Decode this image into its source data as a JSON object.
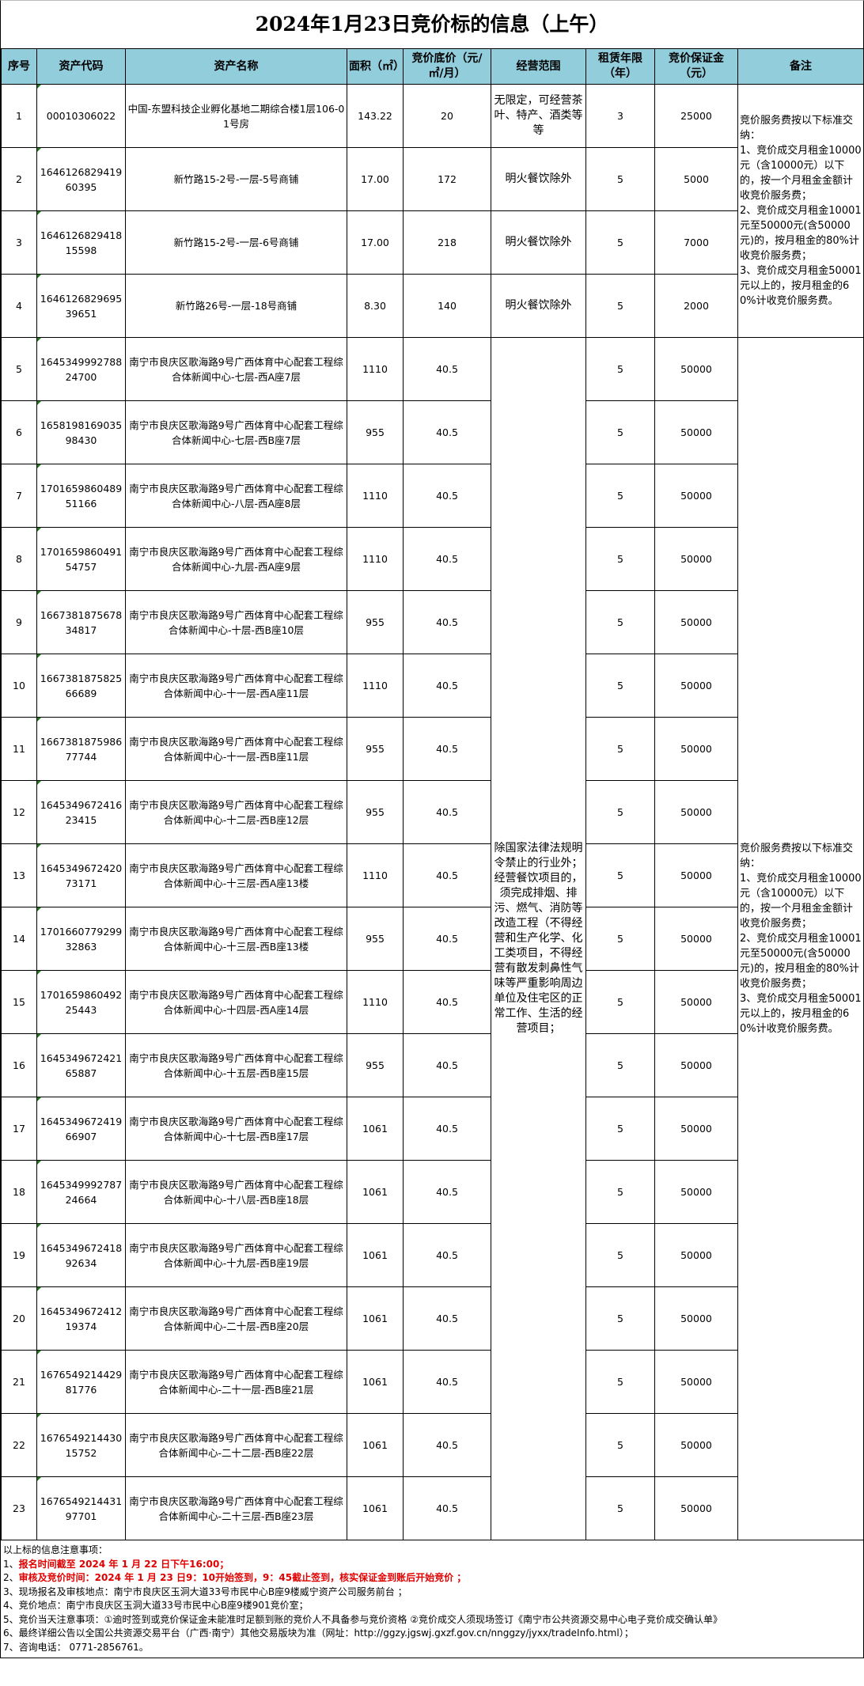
{
  "title": "2024年1月23日竞价标的信息（上午）",
  "header_color": "#92cddc",
  "columns": [
    "序号",
    "资产代码",
    "资产名称",
    "面积（㎡）",
    "竞价底价（元/㎡/月）",
    "经营范围",
    "租赁年限（年）",
    "竞价保证金（元）",
    "备注"
  ],
  "remark": "竞价服务费按以下标准交纳：\n1、竞价成交月租金10000元（含10000元）以下的，按一个月租金金额计收竞价服务费；\n2、竞价成交月租金10001元至50000元(含50000元)的，按月租金的80%计收竞价服务费；\n3、竞价成交月租金50001元以上的，按月租金的60%计收竞价服务费。",
  "scope_group": "除国家法律法规明令禁止的行业外；经营餐饮项目的，须完成排烟、排污、燃气、消防等改造工程（不得经营和生产化学、化工类项目，不得经营有散发刺鼻性气味等严重影响周边单位及住宅区的正常工作、生活的经营项目；",
  "rows": [
    {
      "no": "1",
      "code": "00010306022",
      "name": "中国-东盟科技企业孵化基地二期综合楼1层106-01号房",
      "area": "143.22",
      "price": "20",
      "scope": "无限定，可经营茶叶、特产、酒类等等",
      "years": "3",
      "deposit": "25000"
    },
    {
      "no": "2",
      "code": "164612682941960395",
      "name": "新竹路15-2号-一层-5号商铺",
      "area": "17.00",
      "price": "172",
      "scope": "明火餐饮除外",
      "years": "5",
      "deposit": "5000"
    },
    {
      "no": "3",
      "code": "164612682941815598",
      "name": "新竹路15-2号-一层-6号商铺",
      "area": "17.00",
      "price": "218",
      "scope": "明火餐饮除外",
      "years": "5",
      "deposit": "7000"
    },
    {
      "no": "4",
      "code": "164612682969539651",
      "name": "新竹路26号-一层-18号商铺",
      "area": "8.30",
      "price": "140",
      "scope": "明火餐饮除外",
      "years": "5",
      "deposit": "2000"
    },
    {
      "no": "5",
      "code": "164534999278824700",
      "name": "南宁市良庆区歌海路9号广西体育中心配套工程综合体新闻中心-七层-西A座7层",
      "area": "1110",
      "price": "40.5",
      "years": "5",
      "deposit": "50000"
    },
    {
      "no": "6",
      "code": "165819816903598430",
      "name": "南宁市良庆区歌海路9号广西体育中心配套工程综合体新闻中心-七层-西B座7层",
      "area": "955",
      "price": "40.5",
      "years": "5",
      "deposit": "50000"
    },
    {
      "no": "7",
      "code": "170165986048951166",
      "name": "南宁市良庆区歌海路9号广西体育中心配套工程综合体新闻中心-八层-西A座8层",
      "area": "1110",
      "price": "40.5",
      "years": "5",
      "deposit": "50000"
    },
    {
      "no": "8",
      "code": "170165986049154757",
      "name": "南宁市良庆区歌海路9号广西体育中心配套工程综合体新闻中心-九层-西A座9层",
      "area": "1110",
      "price": "40.5",
      "years": "5",
      "deposit": "50000"
    },
    {
      "no": "9",
      "code": "166738187567834817",
      "name": "南宁市良庆区歌海路9号广西体育中心配套工程综合体新闻中心-十层-西B座10层",
      "area": "955",
      "price": "40.5",
      "years": "5",
      "deposit": "50000"
    },
    {
      "no": "10",
      "code": "166738187582566689",
      "name": "南宁市良庆区歌海路9号广西体育中心配套工程综合体新闻中心-十一层-西A座11层",
      "area": "1110",
      "price": "40.5",
      "years": "5",
      "deposit": "50000"
    },
    {
      "no": "11",
      "code": "166738187598677744",
      "name": "南宁市良庆区歌海路9号广西体育中心配套工程综合体新闻中心-十一层-西B座11层",
      "area": "955",
      "price": "40.5",
      "years": "5",
      "deposit": "50000"
    },
    {
      "no": "12",
      "code": "164534967241623415",
      "name": "南宁市良庆区歌海路9号广西体育中心配套工程综合体新闻中心-十二层-西B座12层",
      "area": "955",
      "price": "40.5",
      "years": "5",
      "deposit": "50000"
    },
    {
      "no": "13",
      "code": "164534967242073171",
      "name": "南宁市良庆区歌海路9号广西体育中心配套工程综合体新闻中心-十三层-西A座13楼",
      "area": "1110",
      "price": "40.5",
      "years": "5",
      "deposit": "50000"
    },
    {
      "no": "14",
      "code": "170166077929932863",
      "name": "南宁市良庆区歌海路9号广西体育中心配套工程综合体新闻中心-十三层-西B座13楼",
      "area": "955",
      "price": "40.5",
      "years": "5",
      "deposit": "50000"
    },
    {
      "no": "15",
      "code": "170165986049225443",
      "name": "南宁市良庆区歌海路9号广西体育中心配套工程综合体新闻中心-十四层-西A座14层",
      "area": "1110",
      "price": "40.5",
      "years": "5",
      "deposit": "50000"
    },
    {
      "no": "16",
      "code": "164534967242165887",
      "name": "南宁市良庆区歌海路9号广西体育中心配套工程综合体新闻中心-十五层-西B座15层",
      "area": "955",
      "price": "40.5",
      "years": "5",
      "deposit": "50000"
    },
    {
      "no": "17",
      "code": "164534967241966907",
      "name": "南宁市良庆区歌海路9号广西体育中心配套工程综合体新闻中心-十七层-西B座17层",
      "area": "1061",
      "price": "40.5",
      "years": "5",
      "deposit": "50000"
    },
    {
      "no": "18",
      "code": "164534999278724664",
      "name": "南宁市良庆区歌海路9号广西体育中心配套工程综合体新闻中心-十八层-西B座18层",
      "area": "1061",
      "price": "40.5",
      "years": "5",
      "deposit": "50000"
    },
    {
      "no": "19",
      "code": "164534967241892634",
      "name": "南宁市良庆区歌海路9号广西体育中心配套工程综合体新闻中心-十九层-西B座19层",
      "area": "1061",
      "price": "40.5",
      "years": "5",
      "deposit": "50000"
    },
    {
      "no": "20",
      "code": "164534967241219374",
      "name": "南宁市良庆区歌海路9号广西体育中心配套工程综合体新闻中心-二十层-西B座20层",
      "area": "1061",
      "price": "40.5",
      "years": "5",
      "deposit": "50000"
    },
    {
      "no": "21",
      "code": "167654921442981776",
      "name": "南宁市良庆区歌海路9号广西体育中心配套工程综合体新闻中心-二十一层-西B座21层",
      "area": "1061",
      "price": "40.5",
      "years": "5",
      "deposit": "50000"
    },
    {
      "no": "22",
      "code": "167654921443015752",
      "name": "南宁市良庆区歌海路9号广西体育中心配套工程综合体新闻中心-二十二层-西B座22层",
      "area": "1061",
      "price": "40.5",
      "years": "5",
      "deposit": "50000"
    },
    {
      "no": "23",
      "code": "167654921443197701",
      "name": "南宁市良庆区歌海路9号广西体育中心配套工程综合体新闻中心-二十三层-西B座23层",
      "area": "1061",
      "price": "40.5",
      "years": "5",
      "deposit": "50000"
    }
  ],
  "notes": {
    "heading": "以上标的信息注意事项：",
    "items": [
      {
        "prefix": "1、",
        "text": "报名时间截至 2024 年 1 月 22 日下午16:00；",
        "highlight": true
      },
      {
        "prefix": "2、",
        "text": "审核及竞价时间：2024 年 1 月 23 日9：10开始签到，9：45截止签到，核实保证金到账后开始竞价 ；",
        "highlight": true
      },
      {
        "prefix": "",
        "text": "3、现场报名及审核地点：南宁市良庆区玉洞大道33号市民中心B座9楼威宁资产公司服务前台 ；",
        "highlight": false
      },
      {
        "prefix": "",
        "text": "4、竞价地点：南宁市良庆区玉洞大道33号市民中心B座9楼901竞价室；",
        "highlight": false
      },
      {
        "prefix": "",
        "text": "5、竞价当天注意事项：①逾时签到或竞价保证金未能准时足额到账的竞价人不具备参与竞价资格 ②竞价成交人须现场签订《南宁市公共资源交易中心电子竞价成交确认单》",
        "highlight": false
      },
      {
        "prefix": "",
        "text": "6、最终详细公告以全国公共资源交易平台（广西·南宁）其他交易版块为准（网址：http://ggzy.jgswj.gxzf.gov.cn/nnggzy/jyxx/tradeInfo.html）；",
        "highlight": false
      },
      {
        "prefix": "",
        "text": "7、咨询电话： 0771-2856761。",
        "highlight": false
      }
    ]
  }
}
